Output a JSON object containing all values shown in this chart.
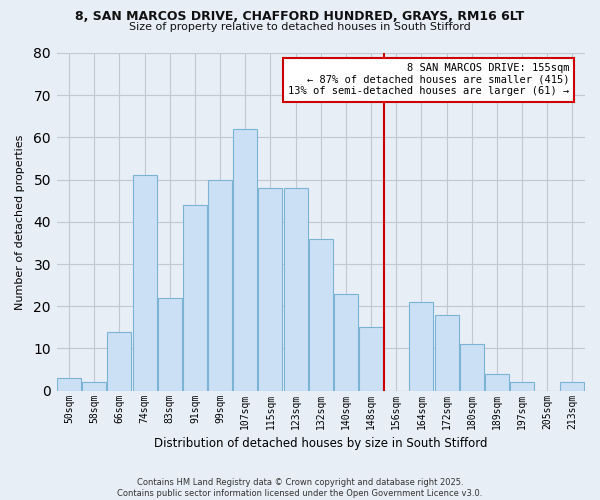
{
  "title_line1": "8, SAN MARCOS DRIVE, CHAFFORD HUNDRED, GRAYS, RM16 6LT",
  "title_line2": "Size of property relative to detached houses in South Stifford",
  "xlabel": "Distribution of detached houses by size in South Stifford",
  "ylabel": "Number of detached properties",
  "bar_labels": [
    "50sqm",
    "58sqm",
    "66sqm",
    "74sqm",
    "83sqm",
    "91sqm",
    "99sqm",
    "107sqm",
    "115sqm",
    "123sqm",
    "132sqm",
    "140sqm",
    "148sqm",
    "156sqm",
    "164sqm",
    "172sqm",
    "180sqm",
    "189sqm",
    "197sqm",
    "205sqm",
    "213sqm"
  ],
  "bar_heights": [
    3,
    2,
    14,
    51,
    22,
    44,
    50,
    62,
    48,
    48,
    36,
    23,
    15,
    0,
    21,
    18,
    11,
    4,
    2,
    0,
    2
  ],
  "bar_color": "#cce0f5",
  "bar_edge_color": "#7ab3d4",
  "vline_x_idx": 13,
  "vline_color": "#cc0000",
  "ylim": [
    0,
    80
  ],
  "yticks": [
    0,
    10,
    20,
    30,
    40,
    50,
    60,
    70,
    80
  ],
  "annotation_title": "8 SAN MARCOS DRIVE: 155sqm",
  "annotation_line1": "← 87% of detached houses are smaller (415)",
  "annotation_line2": "13% of semi-detached houses are larger (61) →",
  "footer_line1": "Contains HM Land Registry data © Crown copyright and database right 2025.",
  "footer_line2": "Contains public sector information licensed under the Open Government Licence v3.0.",
  "background_color": "#e8eef5",
  "plot_bg_color": "#e8eef5",
  "grid_color": "#c0c8d4"
}
